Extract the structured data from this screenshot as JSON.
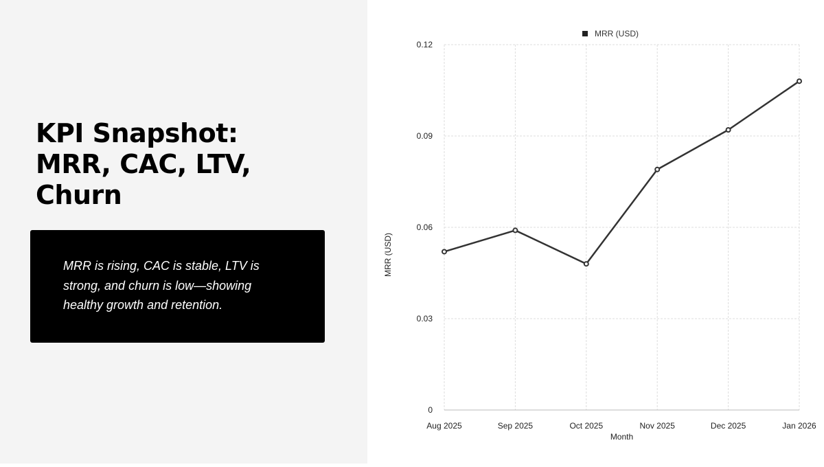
{
  "slide": {
    "title_lines": [
      "KPI Snapshot:",
      "MRR, CAC, LTV,",
      "Churn"
    ],
    "callout": "MRR is rising, CAC is stable, LTV is strong, and churn is low—showing healthy growth and retention."
  },
  "colors": {
    "left_panel_bg": "#f4f4f4",
    "callout_bg": "#000000",
    "line": "#333333",
    "grid": "#dddddd"
  },
  "chart_data": {
    "type": "line",
    "title": "",
    "xlabel": "Month",
    "ylabel": "MRR (USD)",
    "categories": [
      "Aug 2025",
      "Sep 2025",
      "Oct 2025",
      "Nov 2025",
      "Dec 2025",
      "Jan 2026"
    ],
    "series": [
      {
        "name": "MRR (USD)",
        "values": [
          0.052,
          0.059,
          0.048,
          0.079,
          0.092,
          0.108
        ]
      }
    ],
    "ylim": [
      0,
      0.12
    ],
    "yticks": [
      0,
      0.03,
      0.06,
      0.09,
      0.12
    ],
    "ytick_labels": [
      "0",
      "0.03",
      "0.06",
      "0.09",
      "0.12"
    ],
    "grid": true,
    "legend_position": "top-center"
  }
}
